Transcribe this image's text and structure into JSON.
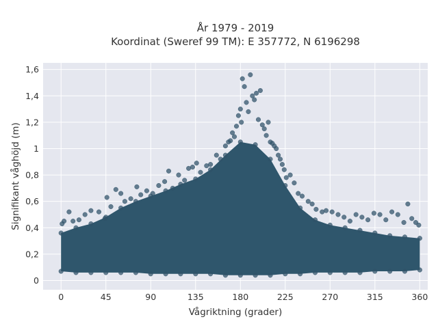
{
  "title": {
    "line1": "År 1979 - 2019",
    "line2": "Koordinat (Sweref 99 TM): E 357772, N 6196298"
  },
  "colors": {
    "plot_background": "#e5e7ef",
    "grid": "#ffffff",
    "marker": "#2f5268"
  },
  "chart_data": {
    "type": "scatter",
    "title": "År 1979 - 2019 / Koordinat (Sweref 99 TM): E 357772, N 6196298",
    "xlabel": "Vågriktning (grader)",
    "ylabel": "Signifikant våghöjd (m)",
    "xlim": [
      -18,
      368
    ],
    "ylim": [
      -0.07,
      1.65
    ],
    "xticks": [
      0,
      45,
      90,
      135,
      180,
      225,
      270,
      315,
      360
    ],
    "xtick_labels": [
      "0",
      "45",
      "90",
      "135",
      "180",
      "225",
      "270",
      "315",
      "360"
    ],
    "yticks": [
      0,
      0.2,
      0.4,
      0.6,
      0.8,
      1.0,
      1.2,
      1.4,
      1.6
    ],
    "ytick_labels": [
      "0",
      "0,2",
      "0,4",
      "0,6",
      "0,8",
      "1",
      "1,2",
      "1,4",
      "1,6"
    ],
    "grid": true,
    "legend": "none",
    "marker_color": "#2f5268",
    "envelope": {
      "x": [
        0,
        15,
        30,
        45,
        60,
        75,
        90,
        105,
        120,
        135,
        150,
        165,
        180,
        195,
        210,
        225,
        240,
        255,
        270,
        285,
        300,
        315,
        330,
        345,
        360
      ],
      "upper": [
        0.36,
        0.4,
        0.43,
        0.48,
        0.55,
        0.6,
        0.64,
        0.68,
        0.73,
        0.77,
        0.84,
        0.95,
        1.05,
        1.03,
        0.92,
        0.72,
        0.55,
        0.46,
        0.42,
        0.4,
        0.38,
        0.36,
        0.34,
        0.33,
        0.32
      ],
      "lower": [
        0.07,
        0.06,
        0.06,
        0.06,
        0.06,
        0.06,
        0.05,
        0.05,
        0.05,
        0.05,
        0.05,
        0.04,
        0.04,
        0.04,
        0.04,
        0.05,
        0.05,
        0.06,
        0.06,
        0.06,
        0.06,
        0.07,
        0.07,
        0.07,
        0.08
      ]
    },
    "outliers": {
      "x": [
        1,
        3,
        8,
        12,
        18,
        24,
        30,
        38,
        44,
        46,
        50,
        55,
        60,
        64,
        70,
        76,
        80,
        86,
        92,
        98,
        104,
        108,
        112,
        118,
        124,
        128,
        132,
        136,
        140,
        146,
        150,
        156,
        160,
        165,
        168,
        170,
        172,
        174,
        176,
        178,
        180,
        181,
        182,
        184,
        186,
        188,
        190,
        192,
        194,
        196,
        198,
        200,
        202,
        204,
        206,
        208,
        210,
        212,
        214,
        216,
        218,
        220,
        222,
        224,
        226,
        230,
        234,
        238,
        242,
        248,
        252,
        256,
        262,
        266,
        272,
        278,
        284,
        290,
        296,
        302,
        308,
        314,
        320,
        326,
        332,
        338,
        344,
        348,
        352,
        356,
        359
      ],
      "y": [
        0.43,
        0.45,
        0.52,
        0.45,
        0.46,
        0.5,
        0.53,
        0.52,
        0.47,
        0.63,
        0.56,
        0.69,
        0.66,
        0.6,
        0.62,
        0.71,
        0.65,
        0.68,
        0.66,
        0.72,
        0.75,
        0.83,
        0.7,
        0.8,
        0.76,
        0.85,
        0.86,
        0.89,
        0.82,
        0.87,
        0.88,
        0.95,
        0.92,
        1.02,
        1.05,
        1.06,
        1.12,
        1.09,
        1.17,
        1.25,
        1.3,
        1.2,
        1.53,
        1.47,
        1.35,
        1.28,
        1.56,
        1.4,
        1.37,
        1.42,
        1.22,
        1.44,
        1.18,
        1.15,
        1.1,
        1.2,
        1.05,
        1.04,
        1.02,
        1.0,
        0.95,
        0.92,
        0.88,
        0.84,
        0.78,
        0.8,
        0.74,
        0.66,
        0.64,
        0.6,
        0.58,
        0.54,
        0.52,
        0.53,
        0.52,
        0.5,
        0.48,
        0.45,
        0.5,
        0.48,
        0.46,
        0.51,
        0.5,
        0.46,
        0.52,
        0.5,
        0.44,
        0.58,
        0.47,
        0.44,
        0.42
      ]
    }
  }
}
